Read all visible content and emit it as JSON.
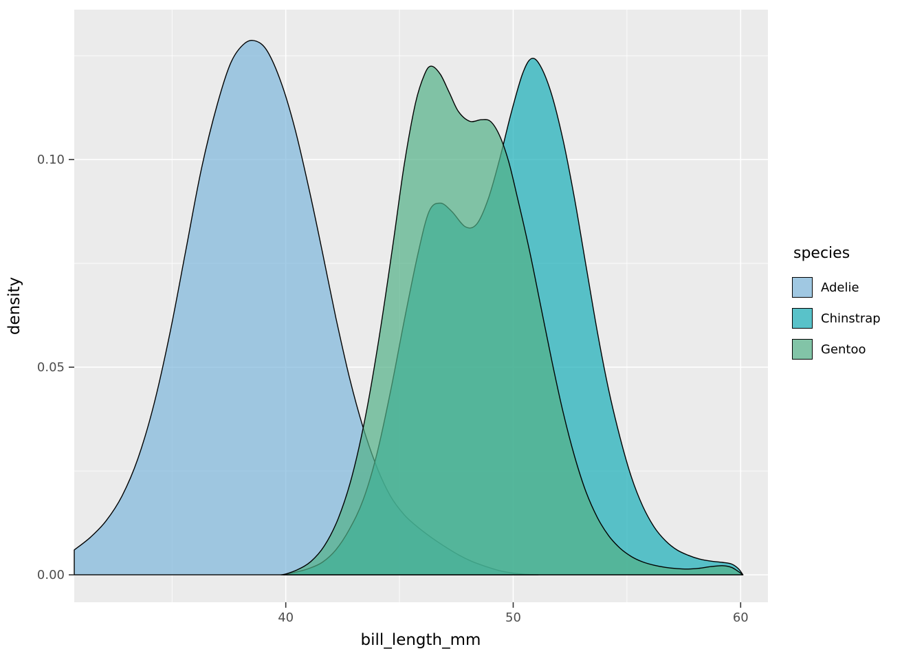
{
  "colors": {
    "panel_bg": "#EBEBEB",
    "grid": "#FFFFFF",
    "tick_mark": "#333333",
    "tick_text": "#4D4D4D",
    "key_bg": "#F2F2F2"
  },
  "chart_data": {
    "type": "area",
    "subtype": "density",
    "title": "",
    "xlabel": "bill_length_mm",
    "ylabel": "density",
    "x_domain": [
      30.7,
      61.2
    ],
    "y_domain": [
      -0.0066,
      0.1361
    ],
    "x_ticks": [
      {
        "v": 40,
        "label": "40"
      },
      {
        "v": 50,
        "label": "50"
      },
      {
        "v": 60,
        "label": "60"
      }
    ],
    "y_ticks": [
      {
        "v": 0,
        "label": "0.00"
      },
      {
        "v": 0.05,
        "label": "0.05"
      },
      {
        "v": 0.1,
        "label": "0.10"
      }
    ],
    "x_minor_ticks": [
      35,
      45,
      55
    ],
    "y_minor_ticks": [
      0.025,
      0.075,
      0.125
    ],
    "grid": true,
    "panel_bg": "#EBEBEB",
    "grid_color": "#FFFFFF",
    "legend": {
      "title": "species",
      "position": "right"
    },
    "series": [
      {
        "name": "Adelie",
        "fill": "#7EB6DC",
        "fill_alpha": 0.7,
        "stroke": "#000000",
        "points": [
          [
            30.7,
            0.006
          ],
          [
            31.4,
            0.009
          ],
          [
            32.1,
            0.013
          ],
          [
            32.8,
            0.019
          ],
          [
            33.5,
            0.028
          ],
          [
            34.2,
            0.041
          ],
          [
            34.9,
            0.058
          ],
          [
            35.6,
            0.078
          ],
          [
            36.3,
            0.098
          ],
          [
            37.0,
            0.1135
          ],
          [
            37.6,
            0.1235
          ],
          [
            38.2,
            0.128
          ],
          [
            38.7,
            0.1285
          ],
          [
            39.2,
            0.126
          ],
          [
            39.8,
            0.1185
          ],
          [
            40.4,
            0.1075
          ],
          [
            41.0,
            0.0935
          ],
          [
            41.6,
            0.078
          ],
          [
            42.2,
            0.062
          ],
          [
            42.8,
            0.0475
          ],
          [
            43.4,
            0.0355
          ],
          [
            44.0,
            0.026
          ],
          [
            44.6,
            0.019
          ],
          [
            45.2,
            0.0145
          ],
          [
            45.8,
            0.0115
          ],
          [
            46.4,
            0.009
          ],
          [
            47.0,
            0.0068
          ],
          [
            47.6,
            0.0048
          ],
          [
            48.2,
            0.0032
          ],
          [
            48.8,
            0.002
          ],
          [
            49.4,
            0.001
          ],
          [
            50.0,
            0.0004
          ],
          [
            50.6,
            0.0001
          ],
          [
            51.1,
            0
          ]
        ]
      },
      {
        "name": "Chinstrap",
        "fill": "#18AEB8",
        "fill_alpha": 0.7,
        "stroke": "#000000",
        "points": [
          [
            39.8,
            0
          ],
          [
            40.4,
            0.0006
          ],
          [
            41.0,
            0.0015
          ],
          [
            41.6,
            0.003
          ],
          [
            42.2,
            0.006
          ],
          [
            42.8,
            0.011
          ],
          [
            43.4,
            0.018
          ],
          [
            44.0,
            0.029
          ],
          [
            44.6,
            0.044
          ],
          [
            45.2,
            0.061
          ],
          [
            45.8,
            0.077
          ],
          [
            46.3,
            0.0875
          ],
          [
            46.8,
            0.0895
          ],
          [
            47.3,
            0.0875
          ],
          [
            47.9,
            0.0838
          ],
          [
            48.4,
            0.0845
          ],
          [
            48.9,
            0.0905
          ],
          [
            49.4,
            0.1
          ],
          [
            49.9,
            0.111
          ],
          [
            50.4,
            0.1205
          ],
          [
            50.8,
            0.1243
          ],
          [
            51.2,
            0.1225
          ],
          [
            51.7,
            0.1155
          ],
          [
            52.2,
            0.1045
          ],
          [
            52.7,
            0.0905
          ],
          [
            53.2,
            0.0745
          ],
          [
            53.7,
            0.0585
          ],
          [
            54.2,
            0.0445
          ],
          [
            54.7,
            0.033
          ],
          [
            55.2,
            0.0235
          ],
          [
            55.7,
            0.0165
          ],
          [
            56.2,
            0.0115
          ],
          [
            56.7,
            0.0082
          ],
          [
            57.2,
            0.006
          ],
          [
            57.7,
            0.0047
          ],
          [
            58.2,
            0.0038
          ],
          [
            58.7,
            0.0033
          ],
          [
            59.2,
            0.003
          ],
          [
            59.6,
            0.0026
          ],
          [
            59.9,
            0.0015
          ],
          [
            60.1,
            0
          ]
        ]
      },
      {
        "name": "Gentoo",
        "fill": "#52B088",
        "fill_alpha": 0.7,
        "stroke": "#000000",
        "points": [
          [
            39.9,
            0
          ],
          [
            40.5,
            0.0012
          ],
          [
            41.1,
            0.0032
          ],
          [
            41.7,
            0.007
          ],
          [
            42.3,
            0.0135
          ],
          [
            42.9,
            0.0235
          ],
          [
            43.5,
            0.038
          ],
          [
            44.1,
            0.057
          ],
          [
            44.7,
            0.079
          ],
          [
            45.2,
            0.0985
          ],
          [
            45.7,
            0.1135
          ],
          [
            46.1,
            0.1205
          ],
          [
            46.4,
            0.1225
          ],
          [
            46.8,
            0.1205
          ],
          [
            47.2,
            0.116
          ],
          [
            47.6,
            0.1115
          ],
          [
            48.1,
            0.1092
          ],
          [
            48.6,
            0.1096
          ],
          [
            49.0,
            0.1092
          ],
          [
            49.4,
            0.1058
          ],
          [
            49.8,
            0.0995
          ],
          [
            50.2,
            0.0905
          ],
          [
            50.7,
            0.0785
          ],
          [
            51.2,
            0.065
          ],
          [
            51.7,
            0.0515
          ],
          [
            52.2,
            0.039
          ],
          [
            52.7,
            0.0285
          ],
          [
            53.2,
            0.02
          ],
          [
            53.7,
            0.0138
          ],
          [
            54.2,
            0.0094
          ],
          [
            54.7,
            0.0064
          ],
          [
            55.2,
            0.0044
          ],
          [
            55.7,
            0.0031
          ],
          [
            56.2,
            0.0023
          ],
          [
            56.7,
            0.0018
          ],
          [
            57.2,
            0.0015
          ],
          [
            57.7,
            0.0014
          ],
          [
            58.2,
            0.0016
          ],
          [
            58.7,
            0.002
          ],
          [
            59.2,
            0.0022
          ],
          [
            59.6,
            0.0018
          ],
          [
            59.9,
            0.0008
          ],
          [
            60.1,
            0
          ]
        ]
      }
    ]
  }
}
